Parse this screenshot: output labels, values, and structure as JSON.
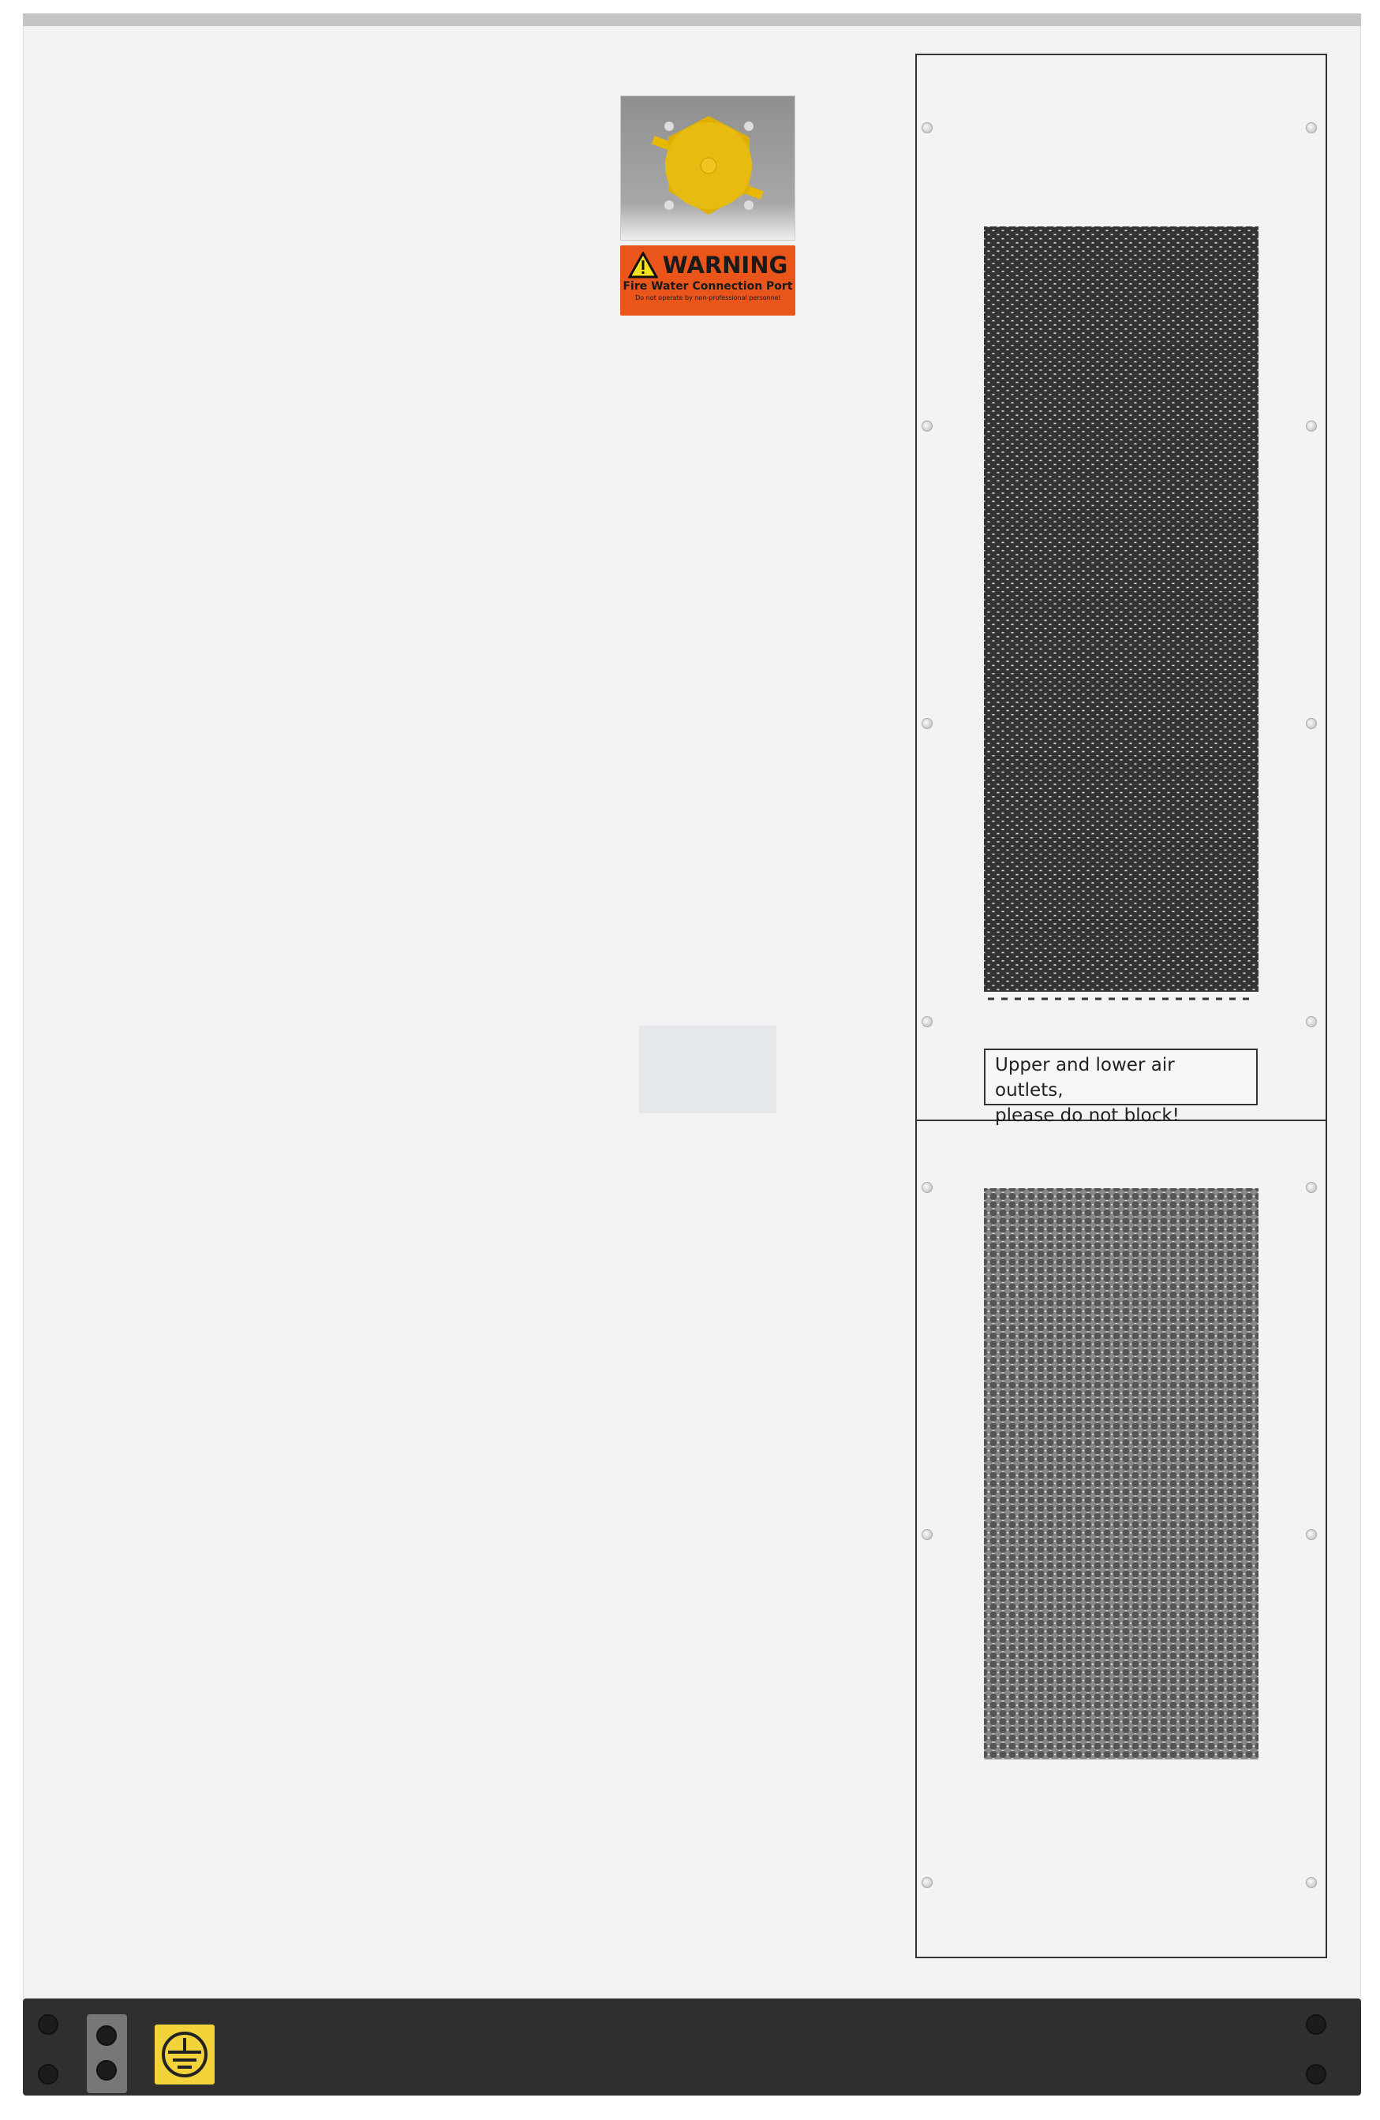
{
  "warning_label": {
    "title": "WARNING",
    "subtitle": "Fire Water Connection Port",
    "note": "Do not operate by non-professional personnel",
    "color": "#ea551c"
  },
  "air_outlet_notice": {
    "line1": "Upper and lower air outlets,",
    "line2": "please do not block!"
  },
  "icons": {
    "warning": "warning-triangle-icon",
    "ground": "protective-earth-icon"
  },
  "colors": {
    "cabinet": "#f2f2f2",
    "base": "#2f2f2f",
    "earth_label": "#f3d33a"
  }
}
